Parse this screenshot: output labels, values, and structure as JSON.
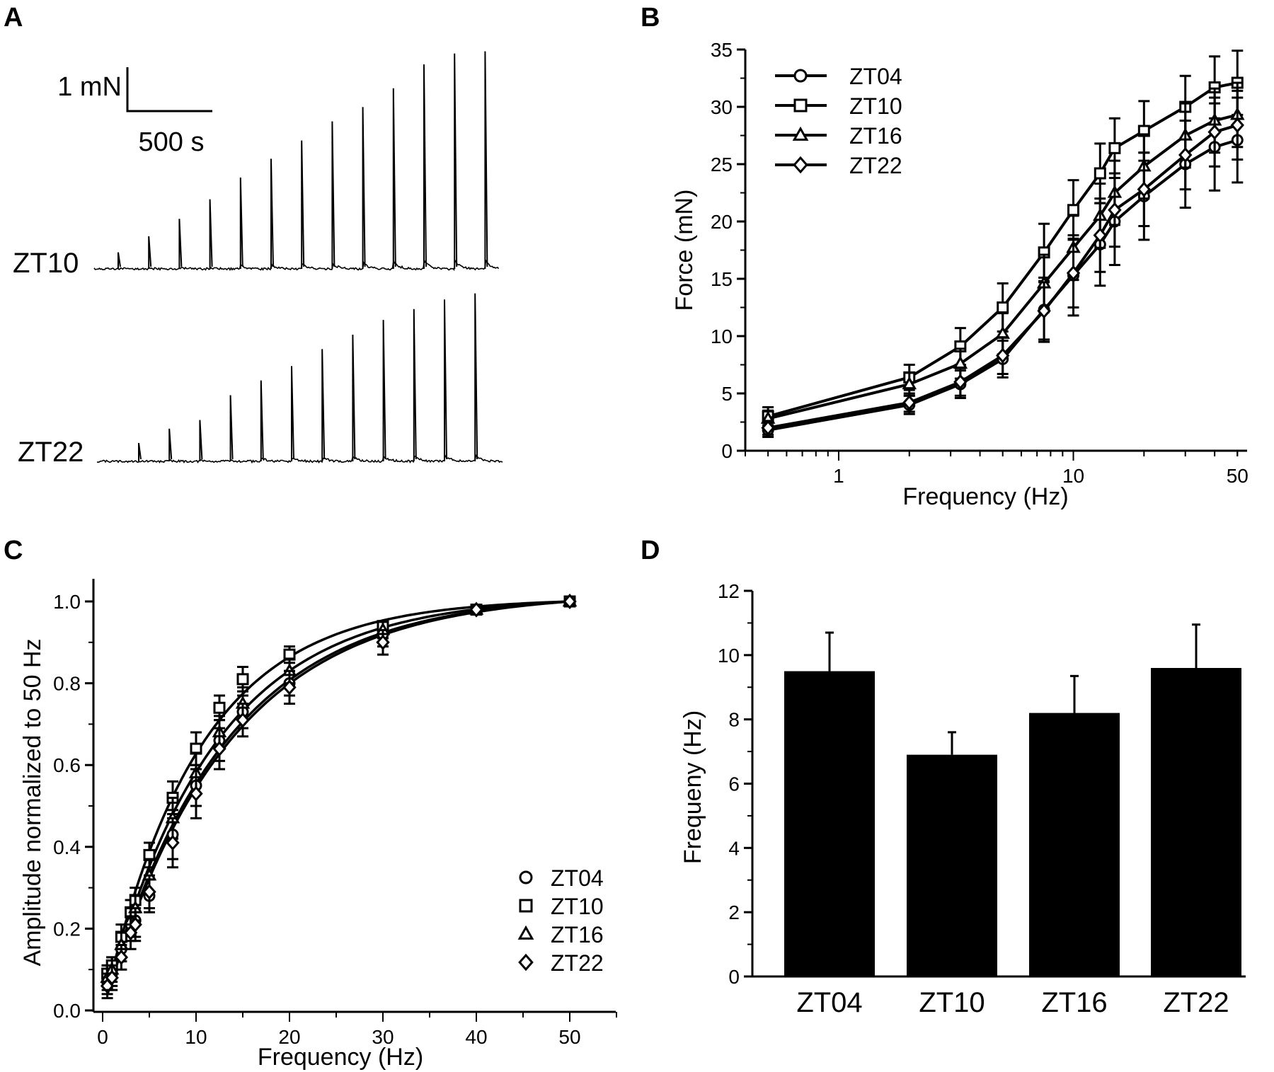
{
  "colors": {
    "ink": "#000000",
    "background": "#ffffff"
  },
  "panels": {
    "A": "A",
    "B": "B",
    "C": "C",
    "D": "D"
  },
  "panel_a": {
    "scale_force": "1 mN",
    "scale_time": "500 s",
    "traces": [
      {
        "label": "ZT10",
        "peaks": [
          0.38,
          0.75,
          1.15,
          1.6,
          2.1,
          2.53,
          2.95,
          3.39,
          3.72,
          4.15,
          4.7,
          4.95,
          5.0
        ]
      },
      {
        "label": "ZT22",
        "peaks": [
          0.42,
          0.75,
          0.95,
          1.52,
          1.86,
          2.19,
          2.58,
          2.91,
          3.25,
          3.5,
          3.72,
          3.86
        ]
      }
    ]
  },
  "chart_data": [
    {
      "panel": "B",
      "type": "line",
      "title": "",
      "xlabel": "Frequency (Hz)",
      "ylabel": "Force (mN)",
      "xscale": "log",
      "xlim": [
        0.4,
        55
      ],
      "ylim": [
        0,
        35
      ],
      "xticks": [
        1,
        10,
        50
      ],
      "yticks": [
        0,
        5,
        10,
        15,
        20,
        25,
        30,
        35
      ],
      "legend_position": "top-left",
      "x": [
        0.5,
        2,
        3.3,
        5,
        7.5,
        10,
        13,
        15,
        20,
        30,
        40,
        50
      ],
      "series": [
        {
          "name": "ZT04",
          "marker": "circle",
          "values": [
            1.8,
            4.0,
            5.8,
            8.0,
            12.3,
            15.3,
            18.0,
            20.0,
            22.2,
            25.0,
            26.5,
            27.1
          ],
          "errors": [
            0.6,
            0.8,
            1.2,
            1.6,
            2.8,
            3.5,
            3.6,
            3.8,
            3.8,
            3.8,
            3.8,
            3.7
          ]
        },
        {
          "name": "ZT10",
          "marker": "square",
          "values": [
            3.0,
            6.4,
            9.1,
            12.5,
            17.3,
            21.0,
            24.2,
            26.4,
            27.9,
            30.0,
            31.7,
            32.1
          ],
          "errors": [
            0.8,
            1.1,
            1.6,
            2.1,
            2.5,
            2.6,
            2.6,
            2.6,
            2.6,
            2.7,
            2.7,
            2.8
          ]
        },
        {
          "name": "ZT16",
          "marker": "triangle",
          "values": [
            2.8,
            5.8,
            7.6,
            10.2,
            14.6,
            17.7,
            20.5,
            22.5,
            24.8,
            27.5,
            28.8,
            29.3
          ],
          "errors": [
            0.7,
            1.0,
            1.3,
            1.8,
            2.5,
            2.8,
            2.8,
            2.8,
            2.8,
            2.8,
            2.8,
            2.8
          ]
        },
        {
          "name": "ZT22",
          "marker": "diamond",
          "values": [
            2.0,
            4.2,
            6.0,
            8.3,
            12.2,
            15.5,
            18.8,
            21.0,
            22.8,
            25.8,
            27.8,
            28.4
          ],
          "errors": [
            0.6,
            0.8,
            1.2,
            1.6,
            2.5,
            3.0,
            3.2,
            3.2,
            3.2,
            3.0,
            3.0,
            3.0
          ]
        }
      ]
    },
    {
      "panel": "C",
      "type": "scatter",
      "title": "",
      "xlabel": "Frequency (Hz)",
      "ylabel": "Amplitude normalized to 50 Hz",
      "xlim": [
        -2,
        55
      ],
      "ylim": [
        0,
        1.05
      ],
      "xticks": [
        0,
        10,
        20,
        30,
        40,
        50
      ],
      "yticks": [
        0.0,
        0.2,
        0.4,
        0.6,
        0.8,
        1.0
      ],
      "legend_position": "bottom-right",
      "x": [
        0.5,
        1,
        2,
        3,
        3.5,
        5,
        7.5,
        10,
        12.5,
        15,
        20,
        30,
        40,
        50
      ],
      "series": [
        {
          "name": "ZT04",
          "marker": "circle",
          "values": [
            0.07,
            0.09,
            0.15,
            0.21,
            0.22,
            0.28,
            0.43,
            0.55,
            0.66,
            0.73,
            0.8,
            0.92,
            0.98,
            1.0
          ],
          "errors": [
            0.03,
            0.03,
            0.03,
            0.04,
            0.04,
            0.04,
            0.06,
            0.05,
            0.05,
            0.04,
            0.03,
            0.03,
            0.01,
            0.0
          ]
        },
        {
          "name": "ZT10",
          "marker": "square",
          "values": [
            0.09,
            0.11,
            0.18,
            0.24,
            0.27,
            0.38,
            0.52,
            0.64,
            0.74,
            0.81,
            0.87,
            0.94,
            0.98,
            1.0
          ],
          "errors": [
            0.02,
            0.02,
            0.03,
            0.03,
            0.03,
            0.03,
            0.04,
            0.04,
            0.03,
            0.03,
            0.02,
            0.01,
            0.01,
            0.0
          ]
        },
        {
          "name": "ZT16",
          "marker": "triangle",
          "values": [
            0.08,
            0.1,
            0.16,
            0.22,
            0.25,
            0.33,
            0.47,
            0.58,
            0.68,
            0.75,
            0.83,
            0.93,
            0.98,
            1.0
          ],
          "errors": [
            0.03,
            0.03,
            0.03,
            0.03,
            0.03,
            0.04,
            0.05,
            0.05,
            0.04,
            0.04,
            0.03,
            0.02,
            0.01,
            0.0
          ]
        },
        {
          "name": "ZT22",
          "marker": "diamond",
          "values": [
            0.06,
            0.08,
            0.13,
            0.19,
            0.21,
            0.29,
            0.41,
            0.53,
            0.64,
            0.71,
            0.79,
            0.9,
            0.98,
            1.0
          ],
          "errors": [
            0.03,
            0.03,
            0.03,
            0.04,
            0.04,
            0.04,
            0.06,
            0.06,
            0.05,
            0.04,
            0.04,
            0.03,
            0.01,
            0.0
          ]
        }
      ],
      "fits": [
        {
          "name": "ZT04",
          "k": 0.0785
        },
        {
          "name": "ZT10",
          "k": 0.0975
        },
        {
          "name": "ZT16",
          "k": 0.0855
        },
        {
          "name": "ZT22",
          "k": 0.076
        }
      ]
    },
    {
      "panel": "D",
      "type": "bar",
      "title": "",
      "xlabel": "",
      "ylabel": "Frequeny (Hz)",
      "ylim": [
        0,
        12
      ],
      "yticks": [
        0,
        2,
        4,
        6,
        8,
        10,
        12
      ],
      "categories": [
        "ZT04",
        "ZT10",
        "ZT16",
        "ZT22"
      ],
      "values": [
        9.5,
        6.9,
        8.2,
        9.6
      ],
      "errors": [
        1.2,
        0.7,
        1.15,
        1.35
      ]
    }
  ]
}
